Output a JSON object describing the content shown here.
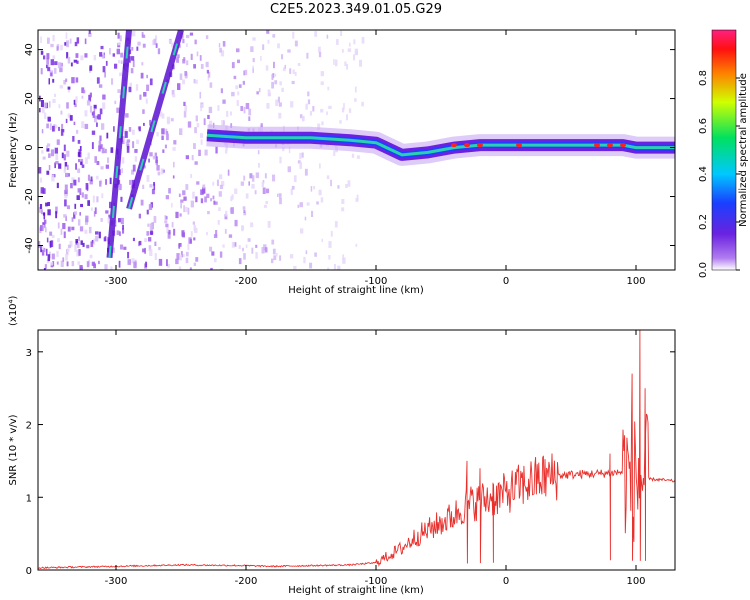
{
  "figure": {
    "title": "C2E5.2023.349.01.05.G29"
  },
  "colors": {
    "snr_line": "#e8302c",
    "ridge_core": "#2ad0b0",
    "speckle": "#6a22e0"
  },
  "chart_data": [
    {
      "type": "heatmap",
      "title": "C2E5.2023.349.01.05.G29",
      "xlabel": "Height of straight line (km)",
      "ylabel": "Frequency (Hz)",
      "xlim": [
        -360,
        130
      ],
      "ylim": [
        -50,
        48
      ],
      "xticks": [
        -300,
        -200,
        -100,
        0,
        100
      ],
      "yticks": [
        -40,
        -20,
        0,
        20,
        40
      ],
      "colorbar": {
        "label": "Normalized spectral amplitude",
        "range": [
          0.0,
          1.0
        ],
        "ticks": [
          "0.0",
          "0.2",
          "0.4",
          "0.6",
          "0.8"
        ],
        "colormap": "rainbow (violet-blue-cyan-green-yellow-red-magenta)"
      },
      "features": [
        {
          "name": "main ridge",
          "x_range": [
            -230,
            130
          ],
          "frequency_hz": 0,
          "peak_amplitude": 1.0
        },
        {
          "name": "diagonal streak 1",
          "x": [
            -305,
            -290
          ],
          "y": [
            -45,
            48
          ]
        },
        {
          "name": "diagonal streak 2",
          "x": [
            -290,
            -250
          ],
          "y": [
            -25,
            48
          ]
        },
        {
          "name": "scatter region",
          "x_range": [
            -360,
            -110
          ],
          "y_range": [
            -50,
            48
          ]
        }
      ],
      "ridge_profile": [
        {
          "x": -230,
          "y": 5
        },
        {
          "x": -200,
          "y": 4
        },
        {
          "x": -150,
          "y": 4
        },
        {
          "x": -120,
          "y": 3
        },
        {
          "x": -100,
          "y": 2
        },
        {
          "x": -80,
          "y": -3
        },
        {
          "x": -60,
          "y": -2
        },
        {
          "x": -40,
          "y": 0
        },
        {
          "x": -20,
          "y": 1
        },
        {
          "x": 0,
          "y": 1
        },
        {
          "x": 50,
          "y": 1
        },
        {
          "x": 90,
          "y": 1
        },
        {
          "x": 100,
          "y": 0
        },
        {
          "x": 130,
          "y": 0
        }
      ]
    },
    {
      "type": "line",
      "xlabel": "Height of straight line (km)",
      "ylabel": "SNR (10 * v/v)",
      "y_multiplier": "(x10⁴)",
      "xlim": [
        -360,
        130
      ],
      "ylim": [
        0,
        3.3
      ],
      "xticks": [
        -300,
        -200,
        -100,
        0,
        100
      ],
      "yticks": [
        0,
        1,
        2,
        3
      ],
      "series": [
        {
          "x": [
            -360,
            -300,
            -250,
            -200,
            -180,
            -150,
            -120,
            -100,
            -90,
            -80,
            -70,
            -60,
            -50,
            -40,
            -30,
            -20,
            -10,
            0,
            10,
            20,
            30,
            40,
            60,
            80,
            90,
            95,
            100,
            105,
            110,
            120,
            130
          ],
          "y": [
            0.03,
            0.05,
            0.07,
            0.06,
            0.05,
            0.06,
            0.07,
            0.1,
            0.2,
            0.3,
            0.45,
            0.55,
            0.65,
            0.75,
            0.9,
            0.95,
            1.0,
            1.05,
            1.15,
            1.22,
            1.28,
            1.3,
            1.32,
            1.33,
            1.35,
            1.3,
            1.25,
            1.25,
            1.25,
            1.24,
            1.22
          ]
        }
      ],
      "spikes": [
        {
          "x": -30,
          "y": 1.5
        },
        {
          "x": -20,
          "y": 1.4
        },
        {
          "x": -10,
          "y": 1.2
        },
        {
          "x": 80,
          "y": 1.6
        },
        {
          "x": 97,
          "y": 2.7
        },
        {
          "x": 103,
          "y": 3.3
        },
        {
          "x": 107,
          "y": 2.5
        }
      ]
    }
  ]
}
